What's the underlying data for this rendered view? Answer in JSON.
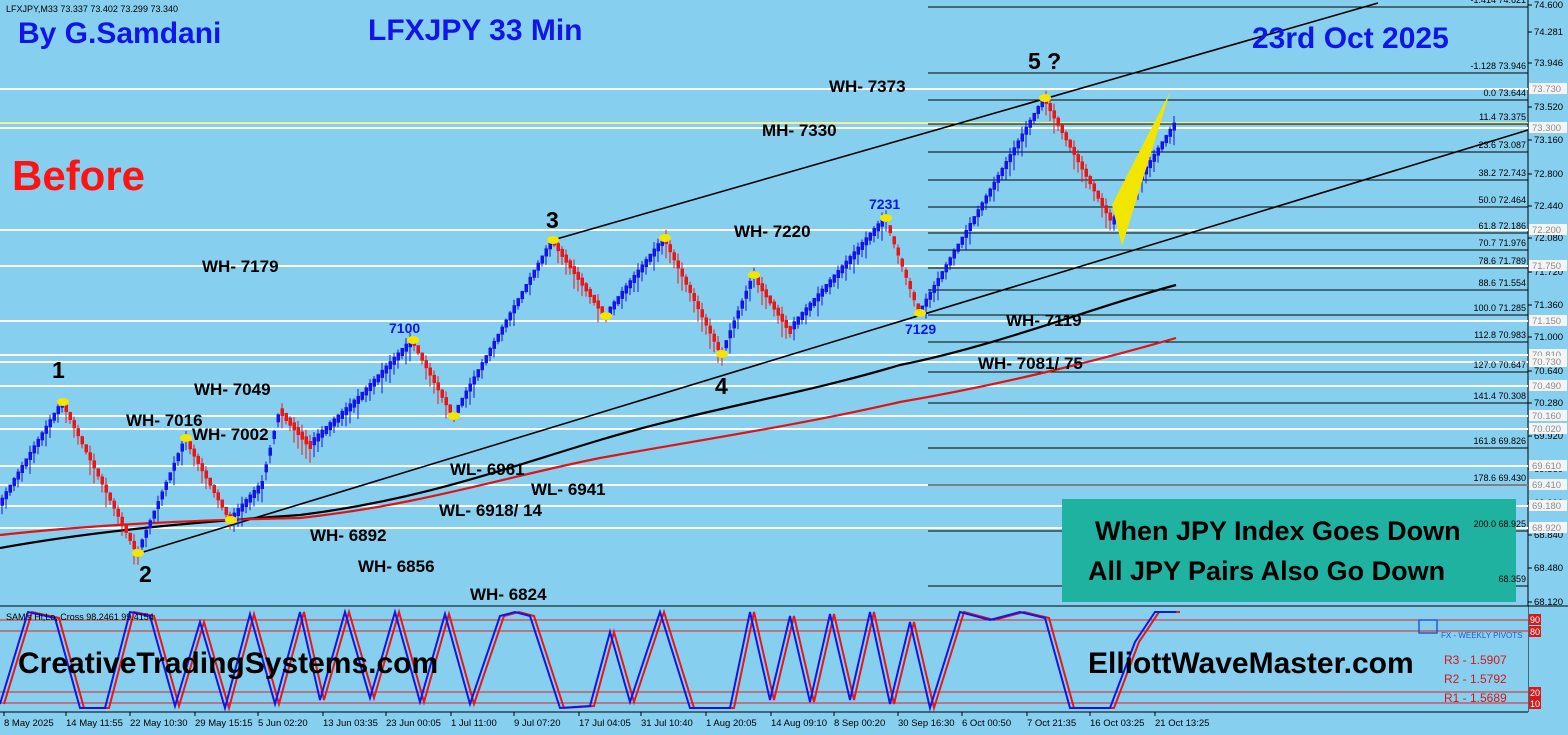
{
  "symbol_line": "LFXJPY,M33  73.337 73.402 73.299 73.340",
  "header": {
    "author": "By G.Samdani",
    "instrument": "LFXJPY 33 Min",
    "date": "23rd Oct 2025"
  },
  "state_label": "Before",
  "wave_labels": {
    "w1": "1",
    "w2": "2",
    "w3": "3",
    "w4": "4",
    "w5": "5 ?"
  },
  "peak_labels": {
    "p7100": "7100",
    "p7231": "7231",
    "p7129": "7129"
  },
  "levels": {
    "wh7373": "WH- 7373",
    "mh7330": "MH- 7330",
    "wh7220": "WH- 7220",
    "wh7179": "WH- 7179",
    "wh7119": "WH- 7119",
    "wh7081": "WH- 7081/ 75",
    "wh7049": "WH- 7049",
    "wh7016": "WH- 7016",
    "wh7002": "WH- 7002",
    "wl6961": "WL- 6961",
    "wl6941": "WL- 6941",
    "wl6918": "WL- 6918/ 14",
    "wh6892": "WH- 6892",
    "wh6856": "WH- 6856",
    "wh6824": "WH- 6824"
  },
  "price_axis": [
    "74.600",
    "74.281",
    "73.946",
    "73.520",
    "73.160",
    "72.800",
    "72.440",
    "72.080",
    "71.720",
    "71.360",
    "71.000",
    "70.640",
    "70.280",
    "69.920",
    "69.560",
    "69.200",
    "68.840",
    "68.480",
    "68.120"
  ],
  "price_tags": [
    "73.730",
    "73.300",
    "72.200",
    "71.750",
    "71.150",
    "70.810",
    "70.730",
    "70.490",
    "70.160",
    "70.020",
    "69.610",
    "69.410",
    "69.180",
    "68.920"
  ],
  "fib_levels": [
    {
      "ratio": "-1.414",
      "price": "74.621"
    },
    {
      "ratio": "-1.128",
      "price": "73.946"
    },
    {
      "ratio": "0.0",
      "price": "73.644"
    },
    {
      "ratio": "11.4",
      "price": "73.375"
    },
    {
      "ratio": "23.6",
      "price": "73.087"
    },
    {
      "ratio": "38.2",
      "price": "72.743"
    },
    {
      "ratio": "50.0",
      "price": "72.464"
    },
    {
      "ratio": "61.8",
      "price": "72.186"
    },
    {
      "ratio": "70.7",
      "price": "71.976"
    },
    {
      "ratio": "78.6",
      "price": "71.789"
    },
    {
      "ratio": "88.6",
      "price": "71.554"
    },
    {
      "ratio": "100.0",
      "price": "71.285"
    },
    {
      "ratio": "112.8",
      "price": "70.983"
    },
    {
      "ratio": "127.0",
      "price": "70.647"
    },
    {
      "ratio": "141.4",
      "price": "70.308"
    },
    {
      "ratio": "161.8",
      "price": "69.826"
    },
    {
      "ratio": "178.6",
      "price": "69.430"
    },
    {
      "ratio": "200.0",
      "price": "68.925"
    },
    {
      "ratio": "",
      "price": "68.359"
    }
  ],
  "time_axis": [
    "8 May 2025",
    "14 May 11:55",
    "22 May 10:30",
    "29 May 15:15",
    "5 Jun 02:20",
    "13 Jun 03:35",
    "23 Jun 00:05",
    "1 Jul 11:00",
    "9 Jul 07:20",
    "17 Jul 04:05",
    "31 Jul 10:40",
    "1 Aug 20:05",
    "14 Aug 09:10",
    "8 Sep 00:20",
    "30 Sep 16:30",
    "6 Oct 00:50",
    "7 Oct 21:35",
    "16 Oct 03:25",
    "21 Oct 13:25"
  ],
  "indicator": {
    "title": "SAM's Hi,Lo, Cross 98.2461 99.4154",
    "levels": [
      "90",
      "80",
      "20",
      "10"
    ]
  },
  "pivots": {
    "title": "FX - WEEKLY PIVOTS",
    "r3": "R3 - 1.5907",
    "r2": "R2 - 1.5792",
    "r1": "R1 - 1.5689"
  },
  "message": {
    "line1": "When JPY Index Goes Down",
    "line2": "All JPY Pairs Also Go Down"
  },
  "watermarks": {
    "left": "CreativeTradingSystems.com",
    "right": "ElliottWaveMaster.com"
  },
  "colors": {
    "background": "#87cfee",
    "bull_candle": "#1414e6",
    "bear_candle": "#e81616",
    "header_text": "#0f16e6",
    "before_text": "#ff1212",
    "ma_red": "#e01414",
    "message_box": "#20b2a0",
    "pivot_marker": "#f2e600"
  }
}
